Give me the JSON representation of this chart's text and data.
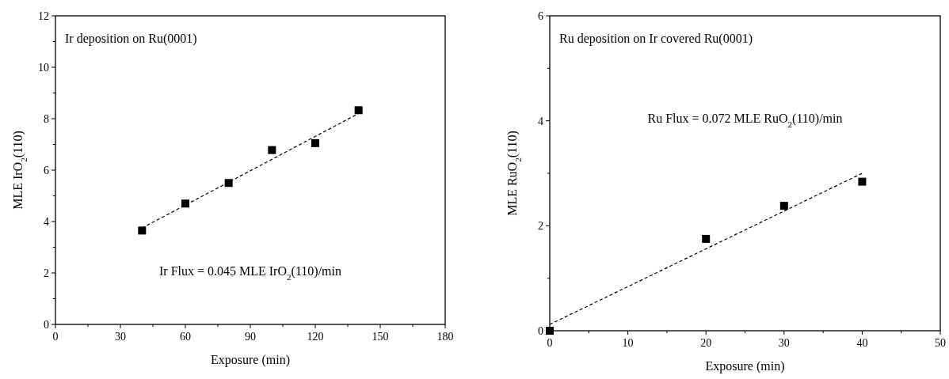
{
  "chart_data": [
    {
      "type": "scatter",
      "xlabel": "Exposure (min)",
      "ylabel": "MLE IrO$_{2}$(110)",
      "annotations": [
        "Ir deposition on Ru(0001)",
        "Ir Flux = 0.045 MLE IrO$_{2}$(110)/min"
      ],
      "marker": "square",
      "xlim": [
        0,
        180
      ],
      "ylim": [
        0,
        12
      ],
      "xticks": [
        0,
        {
          "value": 15,
          "label": null
        },
        30,
        {
          "value": 45,
          "label": null
        },
        60,
        {
          "value": 75,
          "label": null
        },
        90,
        {
          "value": 105,
          "label": null
        },
        120,
        {
          "value": 135,
          "label": null
        },
        150,
        {
          "value": 165,
          "label": null
        },
        180
      ],
      "yticks": [
        0,
        {
          "value": 1,
          "label": null
        },
        2,
        {
          "value": 3,
          "label": null
        },
        4,
        {
          "value": 5,
          "label": null
        },
        6,
        {
          "value": 7,
          "label": null
        },
        8,
        {
          "value": 9,
          "label": null
        },
        10,
        {
          "value": 11,
          "label": null
        },
        12
      ],
      "series": [
        {
          "type": "scatter",
          "color": "#000000",
          "x": [
            40,
            60,
            80,
            100,
            120,
            140
          ],
          "values": [
            3.65,
            4.7,
            5.5,
            6.78,
            7.05,
            8.33
          ]
        },
        {
          "type": "line",
          "color": "#000000",
          "line_style": "dashed",
          "marker": "none",
          "x": [
            40,
            140
          ],
          "values": [
            3.75,
            8.2
          ]
        }
      ]
    },
    {
      "type": "scatter",
      "xlabel": "Exposure (min)",
      "ylabel": "MLE RuO$_{2}$(110)",
      "annotations": [
        "Ru deposition on Ir covered Ru(0001)",
        "Ru Flux = 0.072 MLE RuO$_{2}$(110)/min"
      ],
      "marker": "square",
      "xlim": [
        0,
        50
      ],
      "ylim": [
        0,
        6
      ],
      "xticks": [
        0,
        {
          "value": 5,
          "label": null
        },
        10,
        {
          "value": 15,
          "label": null
        },
        20,
        {
          "value": 25,
          "label": null
        },
        30,
        {
          "value": 35,
          "label": null
        },
        40,
        {
          "value": 45,
          "label": null
        },
        50
      ],
      "yticks": [
        0,
        {
          "value": 1,
          "label": null
        },
        2,
        {
          "value": 3,
          "label": null
        },
        4,
        {
          "value": 5,
          "label": null
        },
        6
      ],
      "series": [
        {
          "type": "scatter",
          "color": "#000000",
          "x": [
            0,
            20,
            30,
            40
          ],
          "values": [
            0,
            1.75,
            2.38,
            2.84
          ]
        },
        {
          "type": "line",
          "color": "#000000",
          "line_style": "dashed",
          "marker": "none",
          "x": [
            0,
            40
          ],
          "values": [
            0.12,
            3.0
          ]
        }
      ]
    }
  ]
}
